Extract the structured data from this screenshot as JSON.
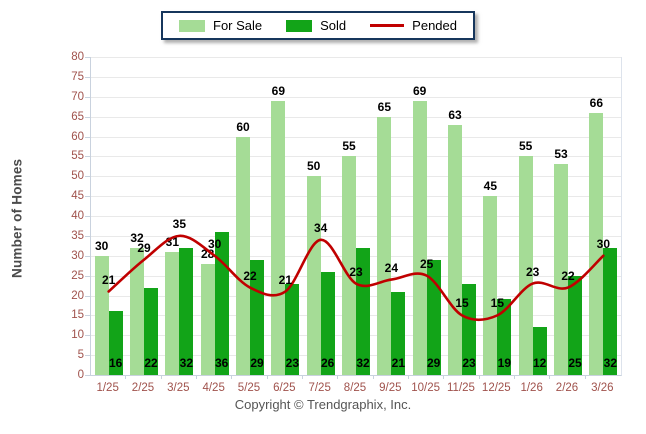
{
  "legend": {
    "items": [
      {
        "label": "For Sale",
        "color": "#A5DC96",
        "type": "swatch"
      },
      {
        "label": "Sold",
        "color": "#12A418",
        "type": "swatch"
      },
      {
        "label": "Pended",
        "color": "#C00000",
        "type": "line"
      }
    ]
  },
  "y_axis": {
    "label": "Number of Homes",
    "min": 0,
    "max": 80,
    "step": 5
  },
  "footer": {
    "text": "Copyright © Trendgraphix, Inc."
  },
  "chart_data": {
    "type": "bar",
    "title": "",
    "xlabel": "",
    "ylabel": "Number of Homes",
    "categories": [
      "1/25",
      "2/25",
      "3/25",
      "4/25",
      "5/25",
      "6/25",
      "7/25",
      "8/25",
      "9/25",
      "10/25",
      "11/25",
      "12/25",
      "1/26",
      "2/26",
      "3/26"
    ],
    "series": [
      {
        "name": "For Sale",
        "type": "bar",
        "color": "#A5DC96",
        "values": [
          30,
          32,
          31,
          28,
          60,
          69,
          50,
          55,
          65,
          69,
          63,
          45,
          55,
          53,
          66
        ]
      },
      {
        "name": "Sold",
        "type": "bar",
        "color": "#12A418",
        "values": [
          16,
          22,
          32,
          36,
          29,
          23,
          26,
          32,
          21,
          29,
          23,
          19,
          12,
          25,
          32
        ]
      },
      {
        "name": "Pended",
        "type": "line",
        "color": "#C00000",
        "values": [
          21,
          29,
          35,
          30,
          22,
          21,
          34,
          23,
          24,
          25,
          15,
          15,
          23,
          22,
          30
        ]
      }
    ],
    "ylim": [
      0,
      80
    ],
    "ytick_step": 5,
    "grid": true,
    "legend_position": "top-center",
    "value_labels": true
  },
  "colors": {
    "for_sale": "#A5DC96",
    "sold": "#12A418",
    "pended": "#C00000",
    "axis_text": "#A0524C",
    "grid_line": "#E9E9E9",
    "axis_line": "#C9D2DE",
    "legend_border": "#16365C",
    "value_label": "#000000",
    "y_title": "#4B4B4B",
    "footer_text": "#555555"
  }
}
